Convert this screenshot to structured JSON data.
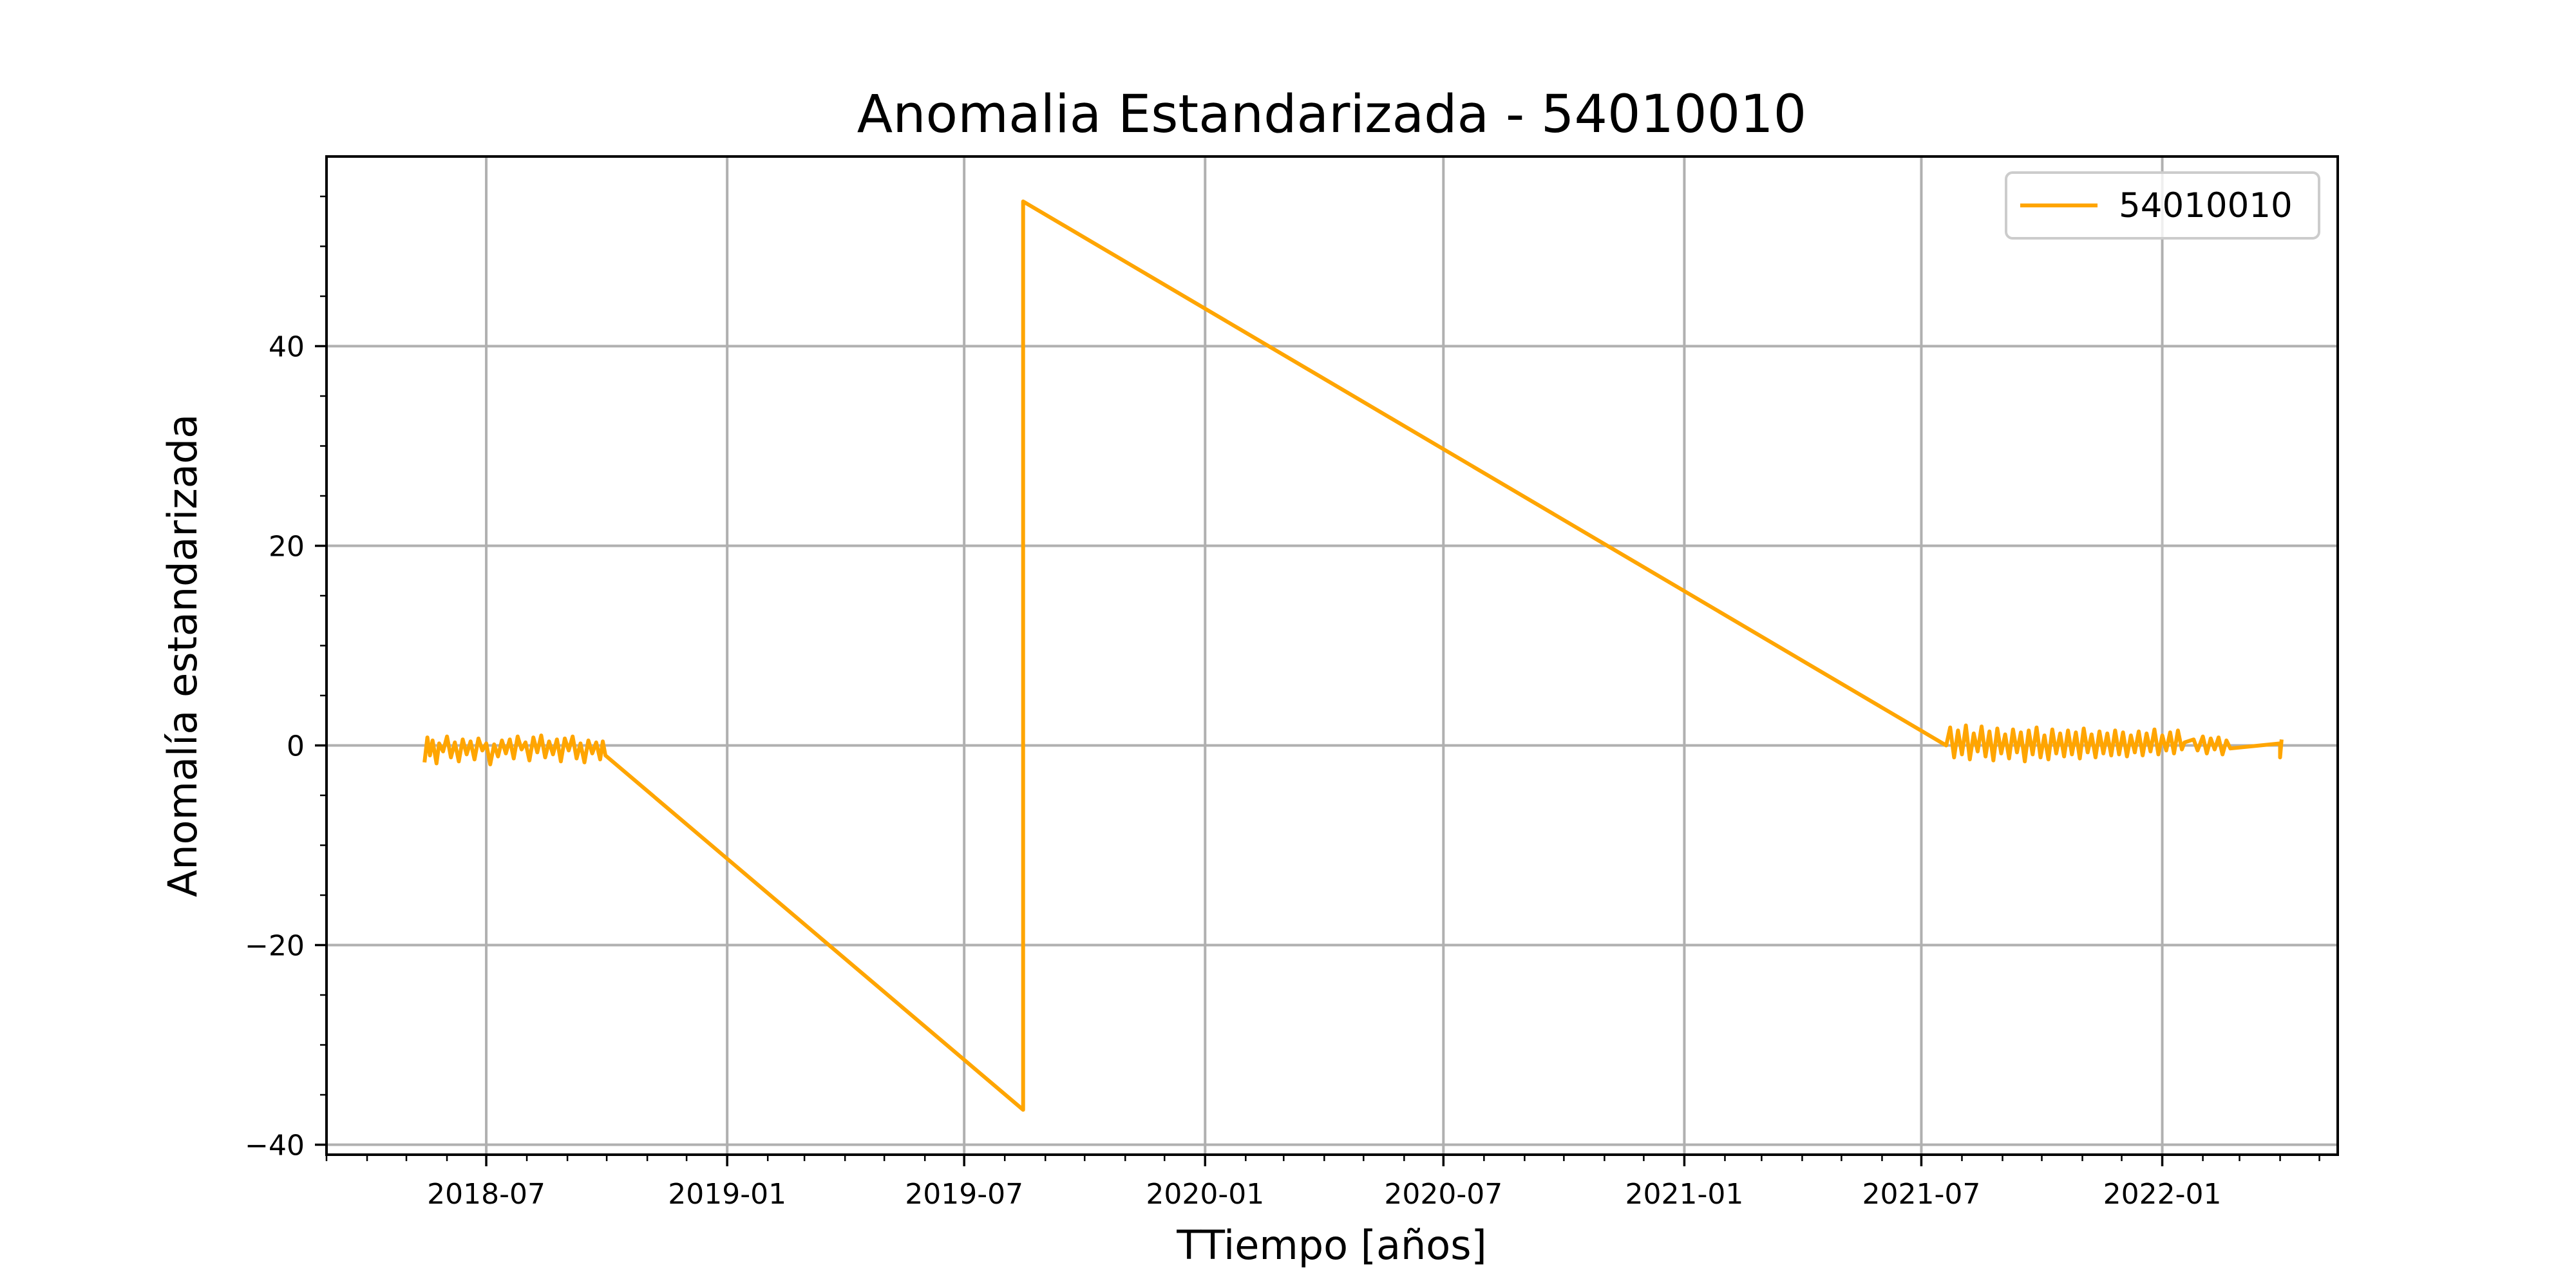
{
  "chart_data": {
    "type": "line",
    "title": "Anomalia Estandarizada - 54010010",
    "xlabel": "TTiempo [años]",
    "ylabel": "Anomalía estandarizada",
    "xlim": [
      "2018-03-01",
      "2022-05-15"
    ],
    "ylim": [
      -41,
      59
    ],
    "x_ticks": [
      {
        "date": "2018-07-01",
        "label": "2018-07"
      },
      {
        "date": "2019-01-01",
        "label": "2019-01"
      },
      {
        "date": "2019-07-01",
        "label": "2019-07"
      },
      {
        "date": "2020-01-01",
        "label": "2020-01"
      },
      {
        "date": "2020-07-01",
        "label": "2020-07"
      },
      {
        "date": "2021-01-01",
        "label": "2021-01"
      },
      {
        "date": "2021-07-01",
        "label": "2021-07"
      },
      {
        "date": "2022-01-01",
        "label": "2022-01"
      }
    ],
    "y_ticks": [
      {
        "value": -40,
        "label": "−40"
      },
      {
        "value": -20,
        "label": "−20"
      },
      {
        "value": 0,
        "label": "0"
      },
      {
        "value": 20,
        "label": "20"
      },
      {
        "value": 40,
        "label": "40"
      }
    ],
    "grid": true,
    "legend_position": "top-right",
    "series": [
      {
        "name": "54010010",
        "color": "#ffa500",
        "points": [
          [
            "2018-05-15",
            -1.5
          ],
          [
            "2018-05-17",
            0.8
          ],
          [
            "2018-05-19",
            -1.0
          ],
          [
            "2018-05-21",
            0.5
          ],
          [
            "2018-05-24",
            -1.8
          ],
          [
            "2018-05-26",
            0.2
          ],
          [
            "2018-05-29",
            -0.6
          ],
          [
            "2018-06-01",
            0.9
          ],
          [
            "2018-06-04",
            -1.2
          ],
          [
            "2018-06-07",
            0.3
          ],
          [
            "2018-06-10",
            -1.6
          ],
          [
            "2018-06-13",
            0.6
          ],
          [
            "2018-06-16",
            -0.9
          ],
          [
            "2018-06-19",
            0.4
          ],
          [
            "2018-06-22",
            -1.4
          ],
          [
            "2018-06-25",
            0.7
          ],
          [
            "2018-06-28",
            -0.5
          ],
          [
            "2018-07-01",
            0.2
          ],
          [
            "2018-07-04",
            -1.9
          ],
          [
            "2018-07-07",
            0.1
          ],
          [
            "2018-07-10",
            -1.1
          ],
          [
            "2018-07-13",
            0.5
          ],
          [
            "2018-07-16",
            -0.8
          ],
          [
            "2018-07-19",
            0.6
          ],
          [
            "2018-07-22",
            -1.3
          ],
          [
            "2018-07-25",
            0.9
          ],
          [
            "2018-07-28",
            -0.4
          ],
          [
            "2018-07-31",
            0.3
          ],
          [
            "2018-08-03",
            -1.5
          ],
          [
            "2018-08-06",
            0.8
          ],
          [
            "2018-08-09",
            -0.7
          ],
          [
            "2018-08-12",
            1.0
          ],
          [
            "2018-08-15",
            -1.2
          ],
          [
            "2018-08-18",
            0.4
          ],
          [
            "2018-08-21",
            -0.9
          ],
          [
            "2018-08-24",
            0.6
          ],
          [
            "2018-08-27",
            -1.6
          ],
          [
            "2018-08-30",
            0.7
          ],
          [
            "2018-09-02",
            -0.5
          ],
          [
            "2018-09-05",
            0.9
          ],
          [
            "2018-09-08",
            -1.3
          ],
          [
            "2018-09-11",
            0.2
          ],
          [
            "2018-09-14",
            -1.7
          ],
          [
            "2018-09-17",
            0.5
          ],
          [
            "2018-09-20",
            -0.8
          ],
          [
            "2018-09-23",
            0.3
          ],
          [
            "2018-09-26",
            -1.4
          ],
          [
            "2018-09-28",
            0.4
          ],
          [
            "2018-09-30",
            -1.0
          ],
          [
            "2019-08-15",
            -36.5
          ],
          [
            "2019-08-15",
            54.5
          ],
          [
            "2021-07-20",
            0.0
          ],
          [
            "2021-07-23",
            1.8
          ],
          [
            "2021-07-26",
            -1.2
          ],
          [
            "2021-07-29",
            1.5
          ],
          [
            "2021-08-01",
            -0.9
          ],
          [
            "2021-08-04",
            2.0
          ],
          [
            "2021-08-07",
            -1.4
          ],
          [
            "2021-08-10",
            1.2
          ],
          [
            "2021-08-13",
            -0.6
          ],
          [
            "2021-08-16",
            1.9
          ],
          [
            "2021-08-19",
            -1.1
          ],
          [
            "2021-08-22",
            1.4
          ],
          [
            "2021-08-25",
            -1.5
          ],
          [
            "2021-08-28",
            1.7
          ],
          [
            "2021-08-31",
            -0.8
          ],
          [
            "2021-09-03",
            1.1
          ],
          [
            "2021-09-06",
            -1.3
          ],
          [
            "2021-09-09",
            1.6
          ],
          [
            "2021-09-12",
            -0.7
          ],
          [
            "2021-09-15",
            1.3
          ],
          [
            "2021-09-18",
            -1.6
          ],
          [
            "2021-09-21",
            1.5
          ],
          [
            "2021-09-24",
            -0.9
          ],
          [
            "2021-09-27",
            1.8
          ],
          [
            "2021-09-30",
            -1.2
          ],
          [
            "2021-10-03",
            1.0
          ],
          [
            "2021-10-06",
            -1.4
          ],
          [
            "2021-10-09",
            1.6
          ],
          [
            "2021-10-12",
            -0.8
          ],
          [
            "2021-10-15",
            1.2
          ],
          [
            "2021-10-18",
            -1.1
          ],
          [
            "2021-10-21",
            1.5
          ],
          [
            "2021-10-24",
            -0.9
          ],
          [
            "2021-10-27",
            1.3
          ],
          [
            "2021-10-30",
            -1.3
          ],
          [
            "2021-11-02",
            1.7
          ],
          [
            "2021-11-05",
            -0.7
          ],
          [
            "2021-11-08",
            1.1
          ],
          [
            "2021-11-11",
            -1.2
          ],
          [
            "2021-11-14",
            1.4
          ],
          [
            "2021-11-17",
            -0.8
          ],
          [
            "2021-11-20",
            1.2
          ],
          [
            "2021-11-23",
            -1.0
          ],
          [
            "2021-11-26",
            1.5
          ],
          [
            "2021-11-29",
            -0.9
          ],
          [
            "2021-12-02",
            1.3
          ],
          [
            "2021-12-05",
            -1.1
          ],
          [
            "2021-12-08",
            1.0
          ],
          [
            "2021-12-11",
            -0.7
          ],
          [
            "2021-12-14",
            1.4
          ],
          [
            "2021-12-17",
            -1.0
          ],
          [
            "2021-12-20",
            1.2
          ],
          [
            "2021-12-23",
            -0.6
          ],
          [
            "2021-12-26",
            1.6
          ],
          [
            "2021-12-29",
            -0.9
          ],
          [
            "2022-01-01",
            1.0
          ],
          [
            "2022-01-04",
            -0.5
          ],
          [
            "2022-01-07",
            1.3
          ],
          [
            "2022-01-10",
            -0.8
          ],
          [
            "2022-01-13",
            1.5
          ],
          [
            "2022-01-16",
            -0.4
          ],
          [
            "2022-01-18",
            0.3
          ],
          [
            "2022-01-25",
            0.6
          ],
          [
            "2022-01-28",
            -0.5
          ],
          [
            "2022-02-01",
            0.9
          ],
          [
            "2022-02-04",
            -0.8
          ],
          [
            "2022-02-07",
            0.7
          ],
          [
            "2022-02-10",
            -0.4
          ],
          [
            "2022-02-13",
            0.8
          ],
          [
            "2022-02-16",
            -0.9
          ],
          [
            "2022-02-19",
            0.5
          ],
          [
            "2022-02-22",
            -0.3
          ],
          [
            "2022-04-01",
            0.2
          ],
          [
            "2022-04-01",
            -1.2
          ],
          [
            "2022-04-02",
            0.4
          ]
        ]
      }
    ]
  }
}
